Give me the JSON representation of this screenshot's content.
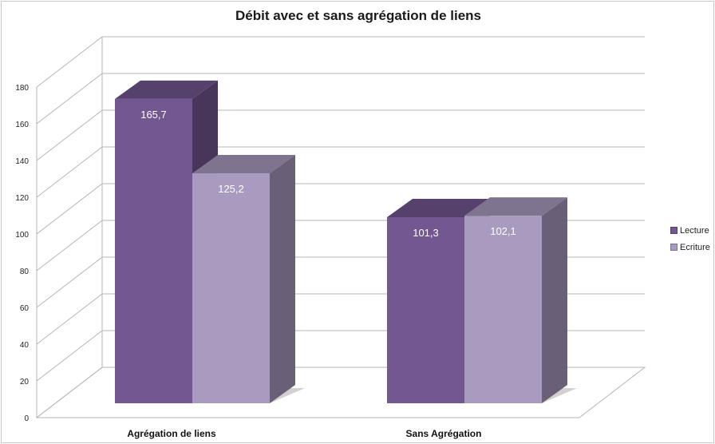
{
  "chart_data": {
    "type": "bar",
    "title": "Débit avec et sans agrégation de liens",
    "categories": [
      "Agrégation de liens",
      "Sans Agrégation"
    ],
    "series": [
      {
        "name": "Lecture",
        "values": [
          165.7,
          101.3
        ],
        "labels": [
          "165,7",
          "101,3"
        ],
        "color": "#735791"
      },
      {
        "name": "Ecriture",
        "values": [
          125.2,
          102.1
        ],
        "labels": [
          "125,2",
          "102,1"
        ],
        "color": "#a99bc0"
      }
    ],
    "ylim": [
      0,
      180
    ],
    "yticks": [
      "0",
      "20",
      "40",
      "60",
      "80",
      "100",
      "120",
      "140",
      "160",
      "180"
    ],
    "grid": true,
    "legend_position": "right",
    "style": "3d-column"
  }
}
